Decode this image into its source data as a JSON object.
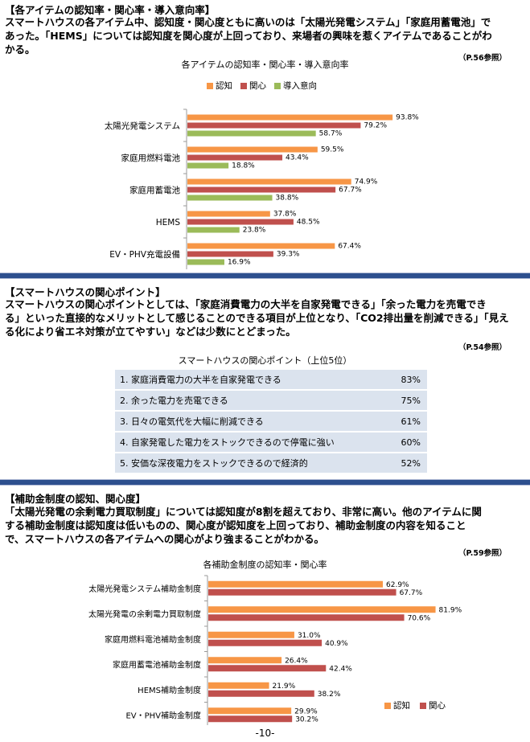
{
  "colors": {
    "ninchi": "#f79646",
    "kanshin": "#c0504d",
    "dounyu": "#9bbb59",
    "divider": "#2d4f8e",
    "table_bg": "#dbe3ee"
  },
  "section1": {
    "heading": "【各アイテムの認知率・関心率・導入意向率】",
    "lines": [
      "スマートハウスの各アイテム中、認知度・関心度ともに高いのは「太陽光発電システム」「家庭用蓄電池」で",
      "あった。「HEMS」については認知度を関心度が上回っており、来場者の興味を惹くアイテムであることがわ",
      "かる。"
    ],
    "ref": "（P.56参照）",
    "chart_title": "各アイテムの認知率・関心率・導入意向率"
  },
  "section2": {
    "heading": "【スマートハウスの関心ポイント】",
    "lines": [
      "スマートハウスの関心ポイントとしては、「家庭消費電力の大半を自家発電できる」「余った電力を売電でき",
      "る」といった直接的なメリットとして感じることのできる項目が上位となり、「CO2排出量を削減できる」「見え",
      "る化により省エネ対策が立てやすい」などは少数にとどまった。"
    ],
    "ref": "（P.54参照）",
    "table_title": "スマートハウスの関心ポイント（上位5位）",
    "rows": [
      {
        "label": "1. 家庭消費電力の大半を自家発電できる",
        "pct": "83%"
      },
      {
        "label": "2. 余った電力を売電できる",
        "pct": "75%"
      },
      {
        "label": "3. 日々の電気代を大幅に削減できる",
        "pct": "61%"
      },
      {
        "label": "4. 自家発電した電力をストックできるので停電に強い",
        "pct": "60%"
      },
      {
        "label": "5. 安価な深夜電力をストックできるので経済的",
        "pct": "52%"
      }
    ]
  },
  "section3": {
    "heading": "【補助金制度の認知、関心度】",
    "lines": [
      "「太陽光発電の余剰電力買取制度」については認知度が8割を超えており、非常に高い。他のアイテムに関",
      "する補助金制度は認知度は低いものの、関心度が認知度を上回っており、補助金制度の内容を知ること",
      "で、スマートハウスの各アイテムへの関心がより強まることがわかる。"
    ],
    "ref": "（P.59参照）",
    "chart_title": "各補助金制度の認知率・関心率"
  },
  "page_number": "-10-",
  "chart_data": [
    {
      "type": "bar",
      "orientation": "horizontal",
      "title": "各アイテムの認知率・関心率・導入意向率",
      "categories": [
        "太陽光発電システム",
        "家庭用燃料電池",
        "家庭用蓄電池",
        "HEMS",
        "EV・PHV充電設備"
      ],
      "series": [
        {
          "name": "認知",
          "values": [
            93.8,
            59.5,
            74.9,
            37.8,
            67.4
          ],
          "labels": [
            "93.8%",
            "59.5%",
            "74.9%",
            "37.8%",
            "67.4%"
          ]
        },
        {
          "name": "関心",
          "values": [
            79.2,
            43.4,
            67.7,
            48.5,
            39.3
          ],
          "labels": [
            "79.2%",
            "43.4%",
            "67.7%",
            "48.5%",
            "39.3%"
          ]
        },
        {
          "name": "導入意向",
          "values": [
            58.7,
            18.8,
            38.8,
            23.8,
            16.9
          ],
          "labels": [
            "58.7%",
            "18.8%",
            "38.8%",
            "23.8%",
            "16.9%"
          ]
        }
      ],
      "xlim": [
        0,
        100
      ],
      "legend": "top"
    },
    {
      "type": "bar",
      "orientation": "horizontal",
      "title": "各補助金制度の認知率・関心率",
      "categories": [
        "太陽光発電システム補助金制度",
        "太陽光発電の余剰電力買取制度",
        "家庭用燃料電池補助金制度",
        "家庭用蓄電池補助金制度",
        "HEMS補助金制度",
        "EV・PHV補助金制度"
      ],
      "series": [
        {
          "name": "認知",
          "values": [
            62.9,
            81.9,
            31.0,
            26.4,
            21.9,
            29.9
          ],
          "labels": [
            "62.9%",
            "81.9%",
            "31.0%",
            "26.4%",
            "21.9%",
            "29.9%"
          ]
        },
        {
          "name": "関心",
          "values": [
            67.7,
            70.6,
            40.9,
            42.4,
            38.2,
            30.2
          ],
          "labels": [
            "67.7%",
            "70.6%",
            "40.9%",
            "42.4%",
            "38.2%",
            "30.2%"
          ]
        }
      ],
      "xlim": [
        0,
        100
      ],
      "legend": "bottom-right"
    }
  ]
}
